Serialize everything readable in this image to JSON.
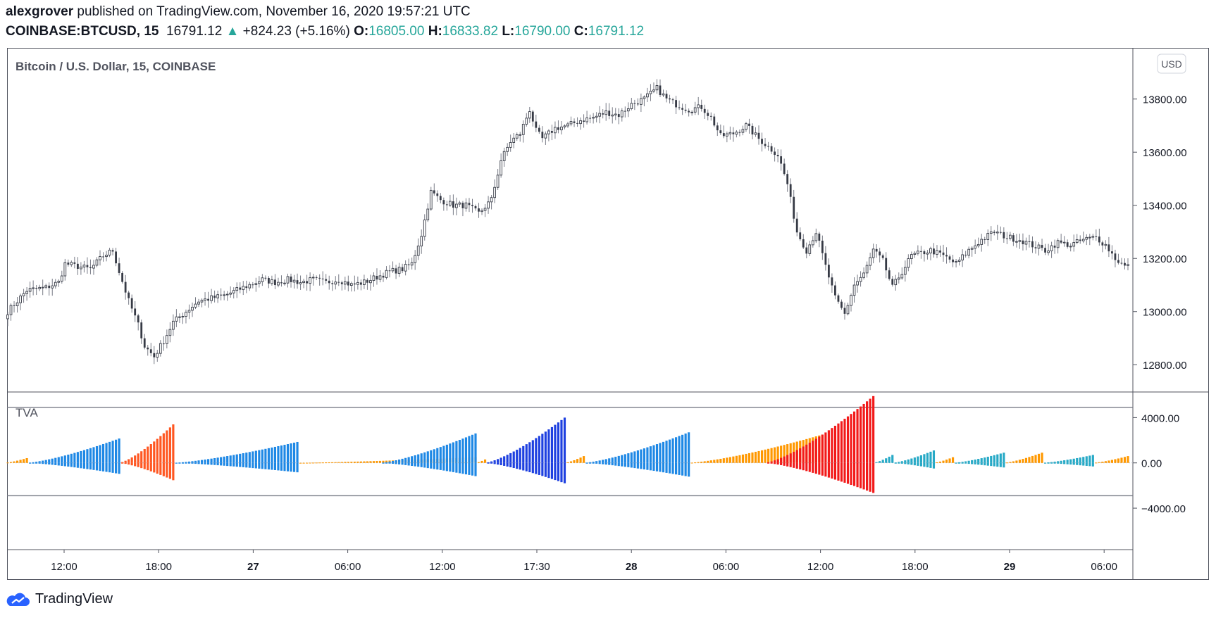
{
  "header": {
    "author": "alexgrover",
    "published_text": "published on TradingView.com, November 16, 2020 19:57:21 UTC",
    "symbol": "COINBASE:BTCUSD, 15",
    "last": "16791.12",
    "change_arrow": "▲",
    "change": "+824.23 (+5.16%)",
    "o_label": "O:",
    "o_val": "16805.00",
    "h_label": "H:",
    "h_val": "16833.82",
    "l_label": "L:",
    "l_val": "16790.00",
    "c_label": "C:",
    "c_val": "16791.12"
  },
  "pane_title": "Bitcoin / U.S. Dollar, 15, COINBASE",
  "currency_button": "USD",
  "indicator_title": "TVA",
  "brand": "TradingView",
  "colors": {
    "candle": "#363a45",
    "wick": "#787b86",
    "blue": "#1e88e5",
    "deep_blue": "#1e40e0",
    "teal": "#26a9c6",
    "orange": "#ff9800",
    "red_orange": "#ff5722",
    "red": "#f21a1a",
    "accent_green": "#26a69a"
  },
  "chart_data": [
    {
      "type": "candlestick",
      "title": "Bitcoin / U.S. Dollar, 15, COINBASE",
      "y_ticks": [
        "13800.00",
        "13600.00",
        "13400.00",
        "13200.00",
        "13000.00",
        "12800.00"
      ],
      "ylim": [
        12700,
        13990
      ],
      "x_ticks": [
        "12:00",
        "18:00",
        "27",
        "06:00",
        "12:00",
        "17:30",
        "28",
        "06:00",
        "12:00",
        "18:00",
        "29",
        "06:00"
      ],
      "close_path": [
        [
          0,
          13000
        ],
        [
          6,
          13080
        ],
        [
          12,
          13090
        ],
        [
          16,
          13110
        ],
        [
          18,
          13180
        ],
        [
          22,
          13170
        ],
        [
          26,
          13160
        ],
        [
          30,
          13210
        ],
        [
          33,
          13230
        ],
        [
          35,
          13150
        ],
        [
          38,
          13040
        ],
        [
          41,
          12950
        ],
        [
          43,
          12870
        ],
        [
          46,
          12830
        ],
        [
          49,
          12890
        ],
        [
          52,
          12960
        ],
        [
          56,
          13000
        ],
        [
          60,
          13040
        ],
        [
          64,
          13050
        ],
        [
          68,
          13060
        ],
        [
          72,
          13080
        ],
        [
          76,
          13100
        ],
        [
          80,
          13120
        ],
        [
          84,
          13110
        ],
        [
          88,
          13120
        ],
        [
          92,
          13110
        ],
        [
          96,
          13120
        ],
        [
          100,
          13110
        ],
        [
          104,
          13120
        ],
        [
          108,
          13100
        ],
        [
          112,
          13110
        ],
        [
          116,
          13130
        ],
        [
          120,
          13150
        ],
        [
          124,
          13160
        ],
        [
          127,
          13180
        ],
        [
          130,
          13290
        ],
        [
          133,
          13450
        ],
        [
          136,
          13420
        ],
        [
          140,
          13400
        ],
        [
          144,
          13400
        ],
        [
          148,
          13370
        ],
        [
          152,
          13420
        ],
        [
          155,
          13570
        ],
        [
          158,
          13640
        ],
        [
          161,
          13670
        ],
        [
          164,
          13760
        ],
        [
          166,
          13680
        ],
        [
          168,
          13650
        ],
        [
          172,
          13690
        ],
        [
          176,
          13700
        ],
        [
          180,
          13720
        ],
        [
          184,
          13730
        ],
        [
          188,
          13750
        ],
        [
          192,
          13740
        ],
        [
          196,
          13780
        ],
        [
          200,
          13800
        ],
        [
          204,
          13840
        ],
        [
          207,
          13800
        ],
        [
          210,
          13780
        ],
        [
          214,
          13760
        ],
        [
          218,
          13770
        ],
        [
          221,
          13730
        ],
        [
          224,
          13660
        ],
        [
          228,
          13670
        ],
        [
          232,
          13700
        ],
        [
          236,
          13650
        ],
        [
          239,
          13620
        ],
        [
          242,
          13590
        ],
        [
          245,
          13480
        ],
        [
          248,
          13300
        ],
        [
          251,
          13230
        ],
        [
          254,
          13300
        ],
        [
          257,
          13170
        ],
        [
          260,
          13050
        ],
        [
          263,
          12990
        ],
        [
          266,
          13100
        ],
        [
          269,
          13140
        ],
        [
          272,
          13230
        ],
        [
          275,
          13190
        ],
        [
          278,
          13090
        ],
        [
          281,
          13150
        ],
        [
          284,
          13210
        ],
        [
          287,
          13220
        ],
        [
          290,
          13230
        ],
        [
          294,
          13210
        ],
        [
          298,
          13180
        ],
        [
          302,
          13230
        ],
        [
          306,
          13270
        ],
        [
          310,
          13300
        ],
        [
          314,
          13280
        ],
        [
          318,
          13270
        ],
        [
          322,
          13250
        ],
        [
          326,
          13230
        ],
        [
          330,
          13260
        ],
        [
          334,
          13250
        ],
        [
          338,
          13270
        ],
        [
          342,
          13280
        ],
        [
          345,
          13250
        ],
        [
          348,
          13200
        ],
        [
          351,
          13170
        ],
        [
          352,
          13170
        ]
      ]
    },
    {
      "type": "bar",
      "title": "TVA",
      "y_ticks": [
        "4000.00",
        "0.00",
        "−4000.00"
      ],
      "ylim": [
        -7600,
        6200
      ],
      "levels": [
        4900,
        -2900
      ],
      "segments": [
        {
          "start": 0,
          "end": 6,
          "peak": 420,
          "color": "orange",
          "bipolar": false
        },
        {
          "start": 7,
          "end": 35,
          "peak": 2150,
          "color": "blue",
          "bipolar": true
        },
        {
          "start": 36,
          "end": 52,
          "peak": 3400,
          "color": "red_orange",
          "bipolar": true
        },
        {
          "start": 53,
          "end": 91,
          "peak": 1850,
          "color": "blue",
          "bipolar": true
        },
        {
          "start": 92,
          "end": 147,
          "peak": 500,
          "color": "orange",
          "bipolar": false
        },
        {
          "start": 118,
          "end": 147,
          "peak": 2600,
          "color": "blue",
          "bipolar": true
        },
        {
          "start": 148,
          "end": 150,
          "peak": 300,
          "color": "orange",
          "bipolar": false
        },
        {
          "start": 151,
          "end": 175,
          "peak": 4000,
          "color": "deep_blue",
          "bipolar": true
        },
        {
          "start": 176,
          "end": 181,
          "peak": 600,
          "color": "orange",
          "bipolar": false
        },
        {
          "start": 182,
          "end": 214,
          "peak": 2700,
          "color": "blue",
          "bipolar": true
        },
        {
          "start": 215,
          "end": 256,
          "peak": 2500,
          "color": "orange",
          "bipolar": false
        },
        {
          "start": 239,
          "end": 272,
          "peak": 5900,
          "color": "red",
          "bipolar": true
        },
        {
          "start": 273,
          "end": 278,
          "peak": 700,
          "color": "teal",
          "bipolar": false
        },
        {
          "start": 279,
          "end": 291,
          "peak": 1100,
          "color": "teal",
          "bipolar": true
        },
        {
          "start": 292,
          "end": 297,
          "peak": 500,
          "color": "orange",
          "bipolar": false
        },
        {
          "start": 298,
          "end": 313,
          "peak": 900,
          "color": "teal",
          "bipolar": true
        },
        {
          "start": 314,
          "end": 325,
          "peak": 900,
          "color": "orange",
          "bipolar": false
        },
        {
          "start": 326,
          "end": 341,
          "peak": 700,
          "color": "teal",
          "bipolar": true
        },
        {
          "start": 342,
          "end": 352,
          "peak": 600,
          "color": "orange",
          "bipolar": false
        }
      ]
    }
  ]
}
